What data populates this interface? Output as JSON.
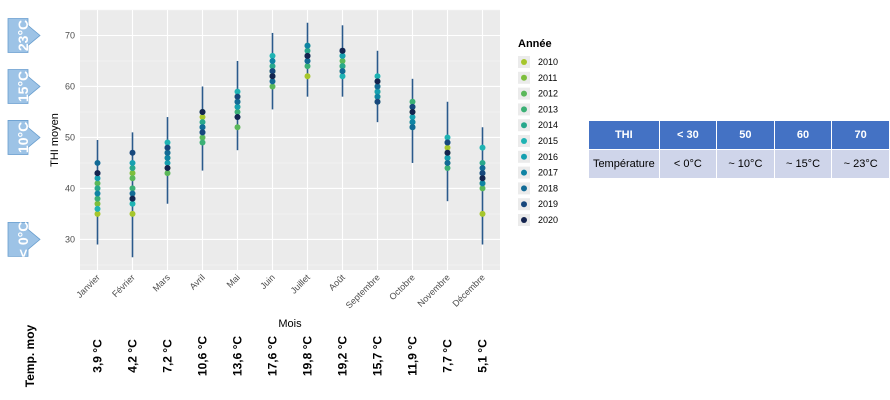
{
  "chart_data": {
    "type": "scatter",
    "xlabel": "Mois",
    "ylabel": "THI moyen",
    "ylim": [
      24,
      75
    ],
    "yticks": [
      30,
      40,
      50,
      60,
      70
    ],
    "grid": true,
    "legend_title": "Année",
    "legend_position": "right",
    "categories": [
      "Janvier",
      "Février",
      "Mars",
      "Avril",
      "Mai",
      "Juin",
      "Juillet",
      "Août",
      "Septembre",
      "Octobre",
      "Novembre",
      "Décembre"
    ],
    "ranges": [
      [
        29,
        49.5
      ],
      [
        26.5,
        51
      ],
      [
        37,
        54
      ],
      [
        43.5,
        60
      ],
      [
        47.5,
        65
      ],
      [
        55.5,
        70.5
      ],
      [
        58,
        72.5
      ],
      [
        58,
        72
      ],
      [
        53,
        67
      ],
      [
        45,
        61.5
      ],
      [
        37.5,
        57
      ],
      [
        29,
        52
      ]
    ],
    "series": [
      {
        "name": "2010",
        "color": "#a6c62c",
        "values": [
          35,
          35,
          44,
          54,
          56,
          62,
          62,
          63,
          58,
          56,
          48,
          35
        ]
      },
      {
        "name": "2011",
        "color": "#7dbe3c",
        "values": [
          37,
          43,
          46,
          55,
          58,
          63,
          66,
          64,
          59,
          55,
          47,
          41
        ]
      },
      {
        "name": "2012",
        "color": "#5bb85a",
        "values": [
          41,
          42,
          43,
          50,
          52,
          60,
          68,
          65,
          60,
          53,
          45,
          40
        ]
      },
      {
        "name": "2013",
        "color": "#3bb075",
        "values": [
          38,
          40,
          48,
          49,
          55,
          63,
          64,
          66,
          57,
          57,
          44,
          42
        ]
      },
      {
        "name": "2014",
        "color": "#28a88c",
        "values": [
          40,
          44,
          47,
          53,
          57,
          64,
          67,
          64,
          61,
          52,
          46,
          45
        ]
      },
      {
        "name": "2015",
        "color": "#1fb3b3",
        "values": [
          36,
          37,
          49,
          52,
          59,
          66,
          66,
          62,
          62,
          56,
          50,
          48
        ]
      },
      {
        "name": "2016",
        "color": "#16a0b0",
        "values": [
          42,
          45,
          45,
          51,
          56,
          62,
          65,
          66,
          59,
          54,
          46,
          43
        ]
      },
      {
        "name": "2017",
        "color": "#0f84a4",
        "values": [
          39,
          38,
          46,
          55,
          54,
          65,
          68,
          67,
          58,
          53,
          49,
          41
        ]
      },
      {
        "name": "2018",
        "color": "#126b96",
        "values": [
          45,
          39,
          47,
          52,
          57,
          61,
          65,
          63,
          60,
          52,
          45,
          44
        ]
      },
      {
        "name": "2019",
        "color": "#17477c",
        "values": [
          43,
          47,
          48,
          51,
          58,
          63,
          66,
          67,
          57,
          56,
          49,
          43
        ]
      },
      {
        "name": "2020",
        "color": "#14244f",
        "values": [
          43,
          38,
          44,
          55,
          54,
          62,
          66,
          67,
          61,
          55,
          47,
          42
        ]
      }
    ],
    "range_color": "#2a5a8c"
  },
  "temp_row": {
    "title": "Temp. moy",
    "values": [
      "3,9 °C",
      "4,2 °C",
      "7,2 °C",
      "10,6 °C",
      "13,6 °C",
      "17,6 °C",
      "19,8 °C",
      "19,2 °C",
      "15,7 °C",
      "11,9 °C",
      "7,7 °C",
      "5,1 °C"
    ]
  },
  "markers": [
    {
      "label": "23°C",
      "thi": 70
    },
    {
      "label": "15°C",
      "thi": 60
    },
    {
      "label": "10°C",
      "thi": 50
    },
    {
      "label": "< 0°C",
      "thi": 30
    }
  ],
  "marker_color": "#9dc3e6",
  "thi_table": {
    "header": [
      "THI",
      "< 30",
      "50",
      "60",
      "70"
    ],
    "row": [
      "Température",
      "< 0°C",
      "~ 10°C",
      "~ 15°C",
      "~ 23°C"
    ]
  }
}
